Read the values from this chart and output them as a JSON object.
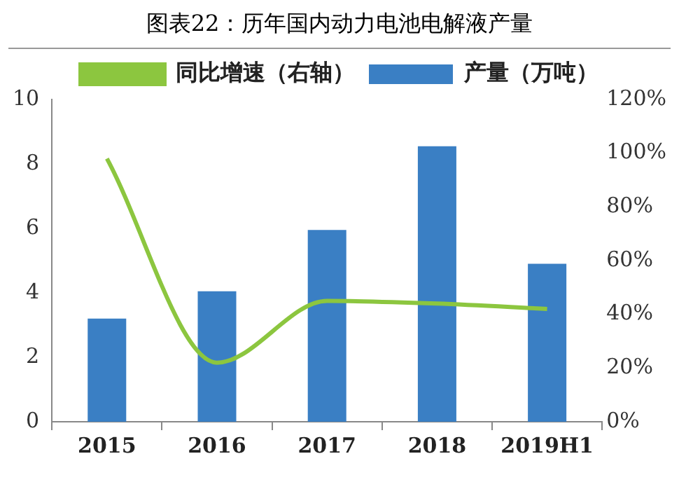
{
  "chart_data": {
    "type": "bar",
    "title": "图表22：历年国内动力电池电解液产量",
    "categories": [
      "2015",
      "2016",
      "2017",
      "2018",
      "2019H1"
    ],
    "series": [
      {
        "name": "产量（万吨）",
        "color": "#3a7fc4",
        "values": [
          3.2,
          4.05,
          5.95,
          8.55,
          4.9
        ]
      },
      {
        "name": "同比增速（右轴）",
        "type": "line",
        "axis": "y2",
        "color": "#8cc63f",
        "values": [
          98,
          22,
          45,
          44,
          42
        ]
      }
    ],
    "ylim": [
      0,
      10
    ],
    "yticks": [
      0,
      2,
      4,
      6,
      8,
      10
    ],
    "y2lim": [
      0,
      120
    ],
    "y2ticks": [
      {
        "value": 0,
        "label": "0%"
      },
      {
        "value": 20,
        "label": "20%"
      },
      {
        "value": 40,
        "label": "40%"
      },
      {
        "value": 60,
        "label": "60%"
      },
      {
        "value": 80,
        "label": "80%"
      },
      {
        "value": 100,
        "label": "100%"
      },
      {
        "value": 120,
        "label": "120%"
      }
    ],
    "grid": false,
    "legend": "top",
    "marker": "none"
  }
}
